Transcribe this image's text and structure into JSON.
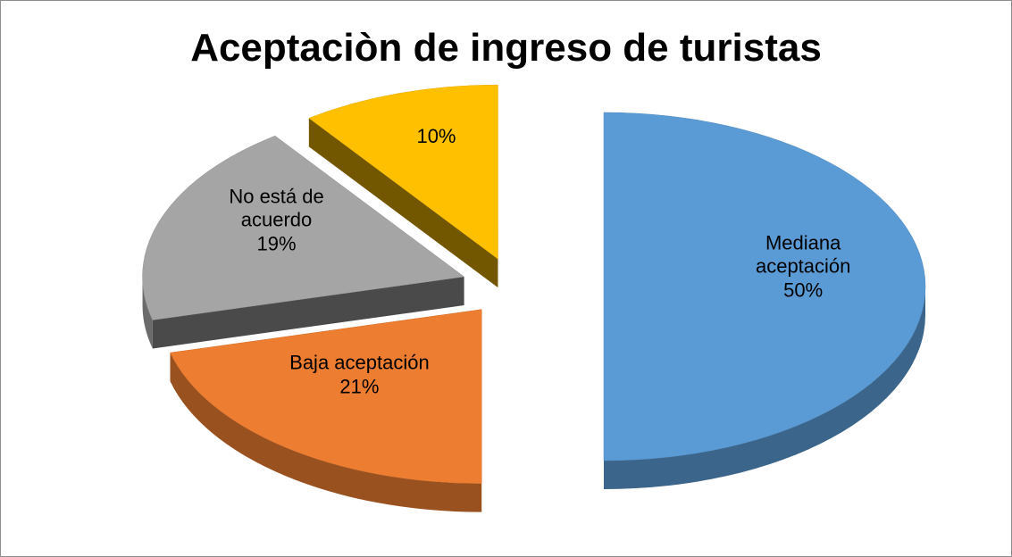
{
  "chart_data": {
    "type": "pie",
    "title": "Aceptaciòn de ingreso de turistas",
    "categories": [
      "Mediana aceptación",
      "Baja aceptación",
      "No está de acuerdo",
      null
    ],
    "values": [
      50,
      21,
      19,
      10
    ],
    "value_labels": [
      "50%",
      "21%",
      "19%",
      "10%"
    ],
    "colors": [
      "#5b9bd5",
      "#ed7d31",
      "#a5a5a5",
      "#ffc000"
    ],
    "exploded": true,
    "three_d": true
  }
}
